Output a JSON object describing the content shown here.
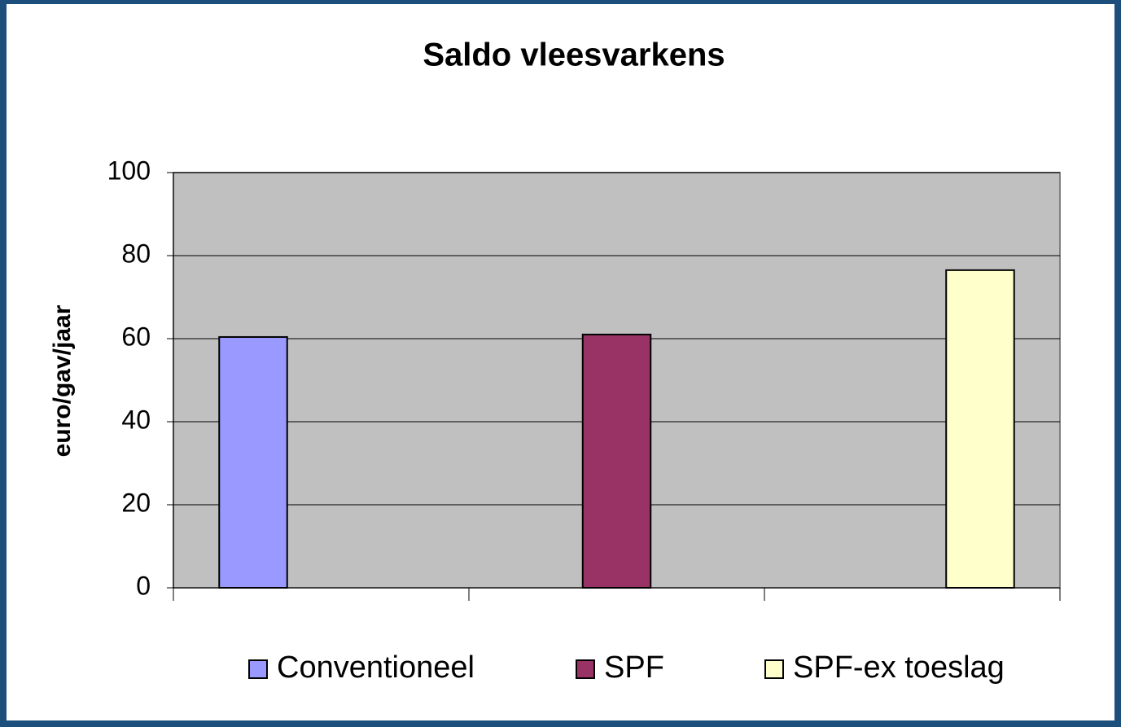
{
  "chart_data": {
    "type": "bar",
    "title": "Saldo vleesvarkens",
    "y_label": "euro/gav/jaar",
    "categories": [
      null,
      null,
      null
    ],
    "series": [
      {
        "name": "Conventioneel",
        "color": "#9999ff",
        "values": [
          60.4,
          null,
          null
        ]
      },
      {
        "name": "SPF",
        "color": "#993366",
        "values": [
          null,
          61.0,
          null
        ]
      },
      {
        "name": "SPF-ex toeslag",
        "color": "#ffffcc",
        "values": [
          null,
          null,
          76.5
        ]
      }
    ],
    "ylim": [
      0,
      100
    ],
    "yticks": [
      0,
      20,
      40,
      60,
      80,
      100
    ],
    "grid": true,
    "legend": "bottom",
    "plot_background": "#c0c0c0"
  }
}
